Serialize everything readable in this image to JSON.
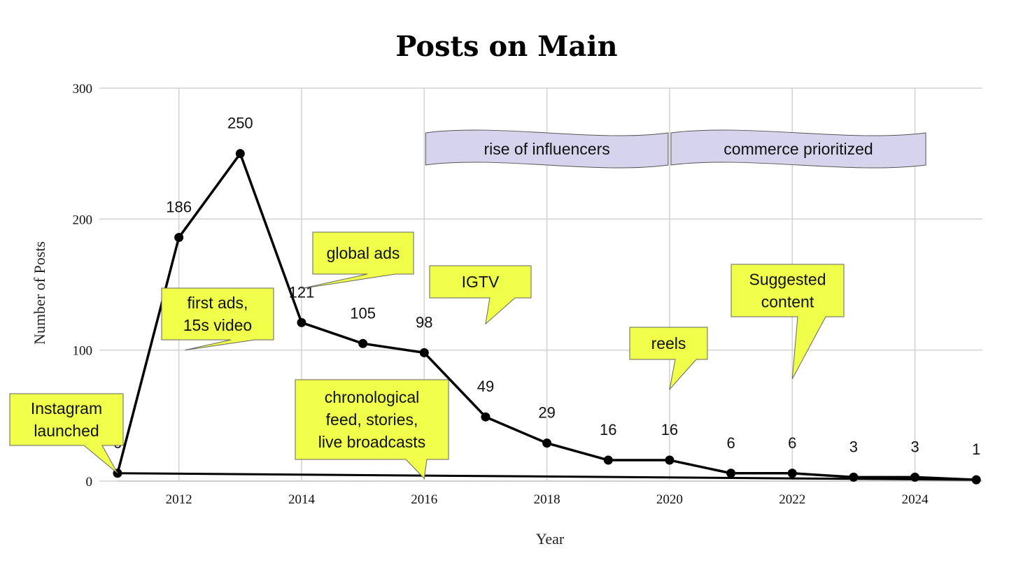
{
  "chart_data": {
    "type": "line",
    "title": "Posts on Main",
    "xlabel": "Year",
    "ylabel": "Number of Posts",
    "xlim": [
      2011,
      2025.1
    ],
    "ylim": [
      0,
      300
    ],
    "xticks": [
      "2012",
      "2014",
      "2016",
      "2018",
      "2020",
      "2022",
      "2024"
    ],
    "yticks": [
      "0",
      "100",
      "200",
      "300"
    ],
    "grid": true,
    "series": [
      {
        "x": [
          2011,
          2012,
          2013,
          2014,
          2015,
          2016,
          2017,
          2018,
          2019,
          2020,
          2021,
          2022,
          2023,
          2024,
          2025
        ],
        "values": [
          6,
          186,
          250,
          121,
          105,
          98,
          49,
          29,
          16,
          16,
          6,
          6,
          3,
          3,
          1
        ]
      }
    ],
    "data_labels": [
      "6",
      "186",
      "250",
      "121",
      "105",
      "98",
      "49",
      "29",
      "16",
      "16",
      "6",
      "6",
      "3",
      "3",
      "1"
    ],
    "trend_line": {
      "x": [
        2011,
        2025
      ],
      "values": [
        6,
        1
      ]
    },
    "banners": [
      {
        "text": "rise of influencers",
        "x_start": 2016,
        "x_end": 2020
      },
      {
        "text": "commerce prioritized",
        "x_start": 2020,
        "x_end": 2024.2
      }
    ],
    "annotations": [
      {
        "lines": [
          "Instagram",
          "launched"
        ],
        "x": 2011,
        "y": 6
      },
      {
        "lines": [
          "first ads,",
          "15s video"
        ],
        "x": 2012.1,
        "y": 100
      },
      {
        "lines": [
          "global ads"
        ],
        "x": 2014,
        "y": 147
      },
      {
        "lines": [
          "chronological",
          "feed, stories,",
          "live broadcasts"
        ],
        "x": 2016,
        "y": 2
      },
      {
        "lines": [
          "IGTV"
        ],
        "x": 2017,
        "y": 120
      },
      {
        "lines": [
          "reels"
        ],
        "x": 2020,
        "y": 70
      },
      {
        "lines": [
          "Suggested",
          "content"
        ],
        "x": 2022,
        "y": 78
      }
    ],
    "colors": {
      "line": "#000000",
      "note_fill": "#efff4a",
      "banner_fill": "#d6d4ec",
      "grid": "#d4d4d4"
    }
  }
}
